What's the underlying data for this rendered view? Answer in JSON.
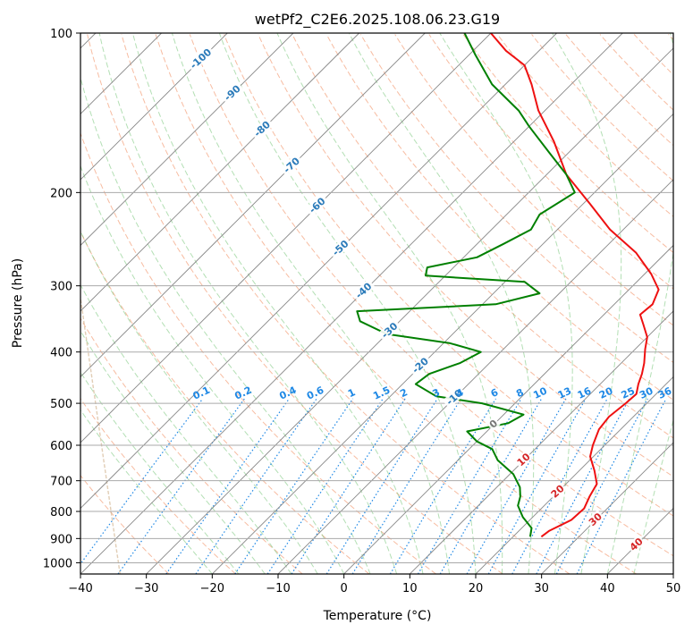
{
  "chart_data": {
    "type": "line",
    "subtype": "skew-t log-p",
    "title": "wetPf2_C2E6.2025.108.06.23.G19",
    "xlabel": "Temperature (°C)",
    "ylabel": "Pressure (hPa)",
    "xlim": [
      -40,
      50
    ],
    "ylim": [
      1050,
      100
    ],
    "y_scale": "log",
    "x_ticks": [
      -40,
      -30,
      -20,
      -10,
      0,
      10,
      20,
      30,
      40,
      50
    ],
    "y_ticks": [
      100,
      200,
      300,
      400,
      500,
      600,
      700,
      800,
      900,
      1000
    ],
    "grid": true,
    "colors": {
      "temperature": "#ee1111",
      "dewpoint": "#008000",
      "isotherm": "#888888",
      "dry_adiabat": "#f4a582",
      "moist_adiabat": "#74c476",
      "mixing_ratio": "#1e88e5",
      "ccn": "#d4b896",
      "label_blue": "#2b7bba",
      "label_red": "#d62728"
    },
    "series": [
      {
        "name": "Temperature",
        "color": "#ee1111",
        "points": [
          [
            893,
            24.3
          ],
          [
            870,
            24.6
          ],
          [
            830,
            26.3
          ],
          [
            790,
            26.5
          ],
          [
            750,
            25.5
          ],
          [
            710,
            24.7
          ],
          [
            670,
            22.3
          ],
          [
            630,
            19.5
          ],
          [
            600,
            18.2
          ],
          [
            560,
            16.7
          ],
          [
            530,
            16.3
          ],
          [
            500,
            16.8
          ],
          [
            480,
            17.0
          ],
          [
            460,
            15.8
          ],
          [
            440,
            14.8
          ],
          [
            420,
            13.5
          ],
          [
            395,
            11.5
          ],
          [
            375,
            10.0
          ],
          [
            355,
            7.5
          ],
          [
            340,
            5.5
          ],
          [
            325,
            5.8
          ],
          [
            305,
            4.5
          ],
          [
            285,
            1.0
          ],
          [
            260,
            -4.5
          ],
          [
            235,
            -12.0
          ],
          [
            210,
            -19.0
          ],
          [
            185,
            -27.0
          ],
          [
            160,
            -34.0
          ],
          [
            140,
            -41.0
          ],
          [
            125,
            -46.0
          ],
          [
            115,
            -50.0
          ],
          [
            108,
            -55.0
          ],
          [
            100,
            -60.0
          ]
        ]
      },
      {
        "name": "Dewpoint",
        "color": "#008000",
        "points": [
          [
            893,
            22.6
          ],
          [
            860,
            21.5
          ],
          [
            820,
            18.5
          ],
          [
            780,
            16.0
          ],
          [
            750,
            15.0
          ],
          [
            720,
            13.5
          ],
          [
            680,
            10.5
          ],
          [
            640,
            6.0
          ],
          [
            610,
            3.5
          ],
          [
            590,
            0.0
          ],
          [
            565,
            -3.0
          ],
          [
            545,
            2.0
          ],
          [
            525,
            3.0
          ],
          [
            500,
            -5.0
          ],
          [
            485,
            -13.0
          ],
          [
            460,
            -18.0
          ],
          [
            440,
            -17.5
          ],
          [
            420,
            -14.5
          ],
          [
            400,
            -13.0
          ],
          [
            385,
            -19.0
          ],
          [
            370,
            -30.0
          ],
          [
            350,
            -36.0
          ],
          [
            335,
            -38.0
          ],
          [
            325,
            -18.0
          ],
          [
            310,
            -13.0
          ],
          [
            295,
            -17.0
          ],
          [
            287,
            -33.0
          ],
          [
            277,
            -34.0
          ],
          [
            265,
            -28.0
          ],
          [
            250,
            -26.0
          ],
          [
            235,
            -24.0
          ],
          [
            220,
            -25.0
          ],
          [
            200,
            -23.0
          ],
          [
            185,
            -27.0
          ],
          [
            168,
            -33.0
          ],
          [
            150,
            -40.0
          ],
          [
            140,
            -44.0
          ],
          [
            125,
            -52.0
          ],
          [
            110,
            -59.0
          ],
          [
            100,
            -64.0
          ]
        ]
      }
    ],
    "isotherm_labels": [
      "-100",
      "-90",
      "-80",
      "-70",
      "-60",
      "-50",
      "-40",
      "-30",
      "-20",
      "-10",
      "0",
      "10",
      "20",
      "30",
      "40"
    ],
    "mixing_ratio_labels": [
      "0.1",
      "0.2",
      "0.4",
      "0.6",
      "1",
      "1.5",
      "2",
      "3",
      "4",
      "6",
      "8",
      "10",
      "13",
      "16",
      "20",
      "25",
      "30",
      "36"
    ]
  }
}
